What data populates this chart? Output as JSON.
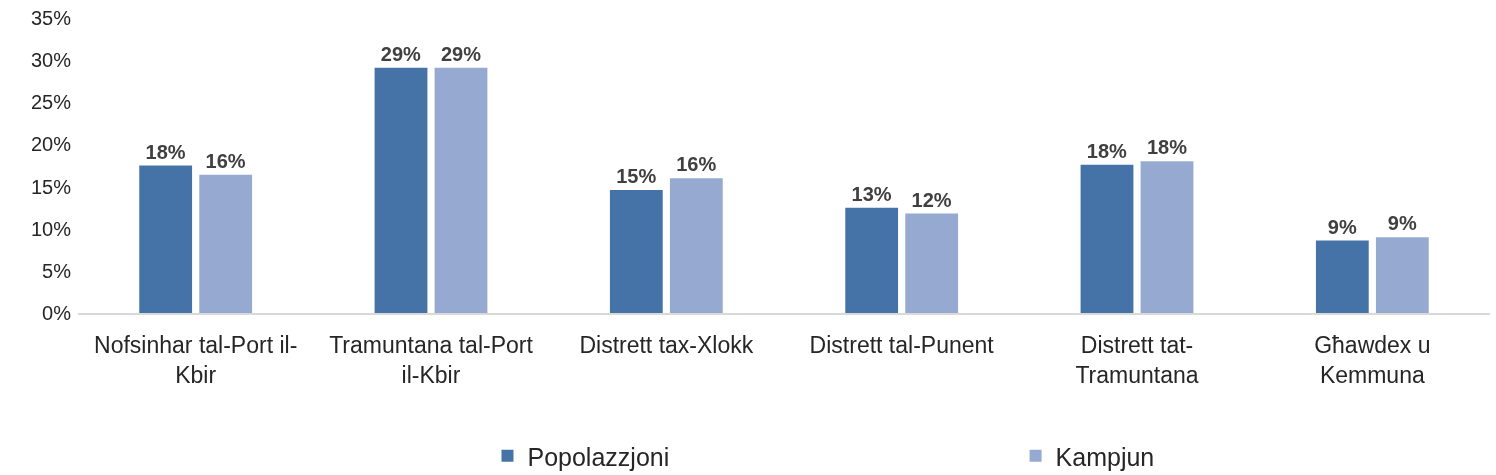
{
  "chart_data": {
    "type": "bar",
    "categories": [
      "Nofsinhar tal-Port il-Kbir",
      "Tramuntana tal-Port il-Kbir",
      "Distrett tax-Xlokk",
      "Distrett tal-Punent",
      "Distrett tat-Tramuntana",
      "Għawdex u Kemmuna"
    ],
    "series": [
      {
        "name": "Popolazzjoni",
        "color": "#4673a7",
        "values": [
          17.5,
          29.1,
          14.6,
          12.5,
          17.6,
          8.6
        ],
        "value_labels": [
          "18%",
          "29%",
          "15%",
          "13%",
          "18%",
          "9%"
        ]
      },
      {
        "name": "Kampjun",
        "color": "#96aad1",
        "values": [
          16.4,
          29.1,
          16.0,
          11.8,
          18.0,
          9.0
        ],
        "value_labels": [
          "16%",
          "29%",
          "16%",
          "12%",
          "18%",
          "9%"
        ]
      }
    ],
    "ylim": [
      0,
      35
    ],
    "yticks": [
      {
        "value": 0,
        "label": "0%"
      },
      {
        "value": 5,
        "label": "5%"
      },
      {
        "value": 10,
        "label": "10%"
      },
      {
        "value": 15,
        "label": "15%"
      },
      {
        "value": 20,
        "label": "20%"
      },
      {
        "value": 25,
        "label": "25%"
      },
      {
        "value": 30,
        "label": "30%"
      },
      {
        "value": 35,
        "label": "35%"
      }
    ],
    "grid": false,
    "legend": "bottom"
  }
}
